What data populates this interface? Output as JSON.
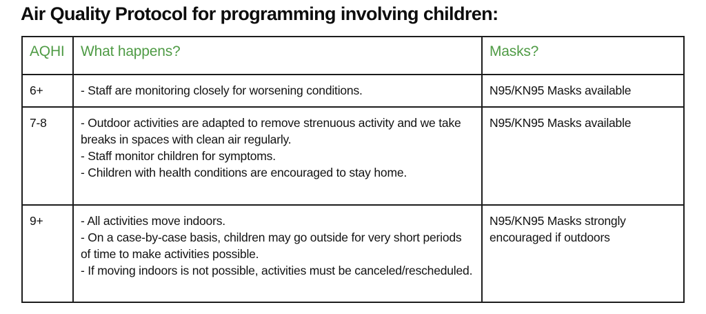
{
  "title": "Air Quality Protocol for programming involving children:",
  "colors": {
    "header_green": "#4f9b45",
    "border": "#1c1c1c",
    "text": "#121212",
    "background": "#ffffff"
  },
  "table": {
    "headers": [
      {
        "label": "AQHI"
      },
      {
        "label": "What happens?"
      },
      {
        "label": "Masks?"
      }
    ],
    "rows": [
      {
        "aqhi": "6+",
        "what_happens": [
          "- Staff are monitoring closely for worsening conditions."
        ],
        "masks": "N95/KN95 Masks available"
      },
      {
        "aqhi": "7-8",
        "what_happens": [
          "- Outdoor activities are adapted to remove strenuous activity and we take breaks in spaces with clean air regularly.",
          "- Staff monitor children for symptoms.",
          "- Children with health conditions are encouraged to stay home."
        ],
        "masks": "N95/KN95 Masks available"
      },
      {
        "aqhi": "9+",
        "what_happens": [
          "- All activities move indoors.",
          "- On a case-by-case basis, children may go outside for very short periods of time to make activities possible.",
          "- If moving indoors is not possible, activities must be canceled/rescheduled."
        ],
        "masks": "N95/KN95 Masks strongly encouraged if outdoors"
      }
    ]
  }
}
